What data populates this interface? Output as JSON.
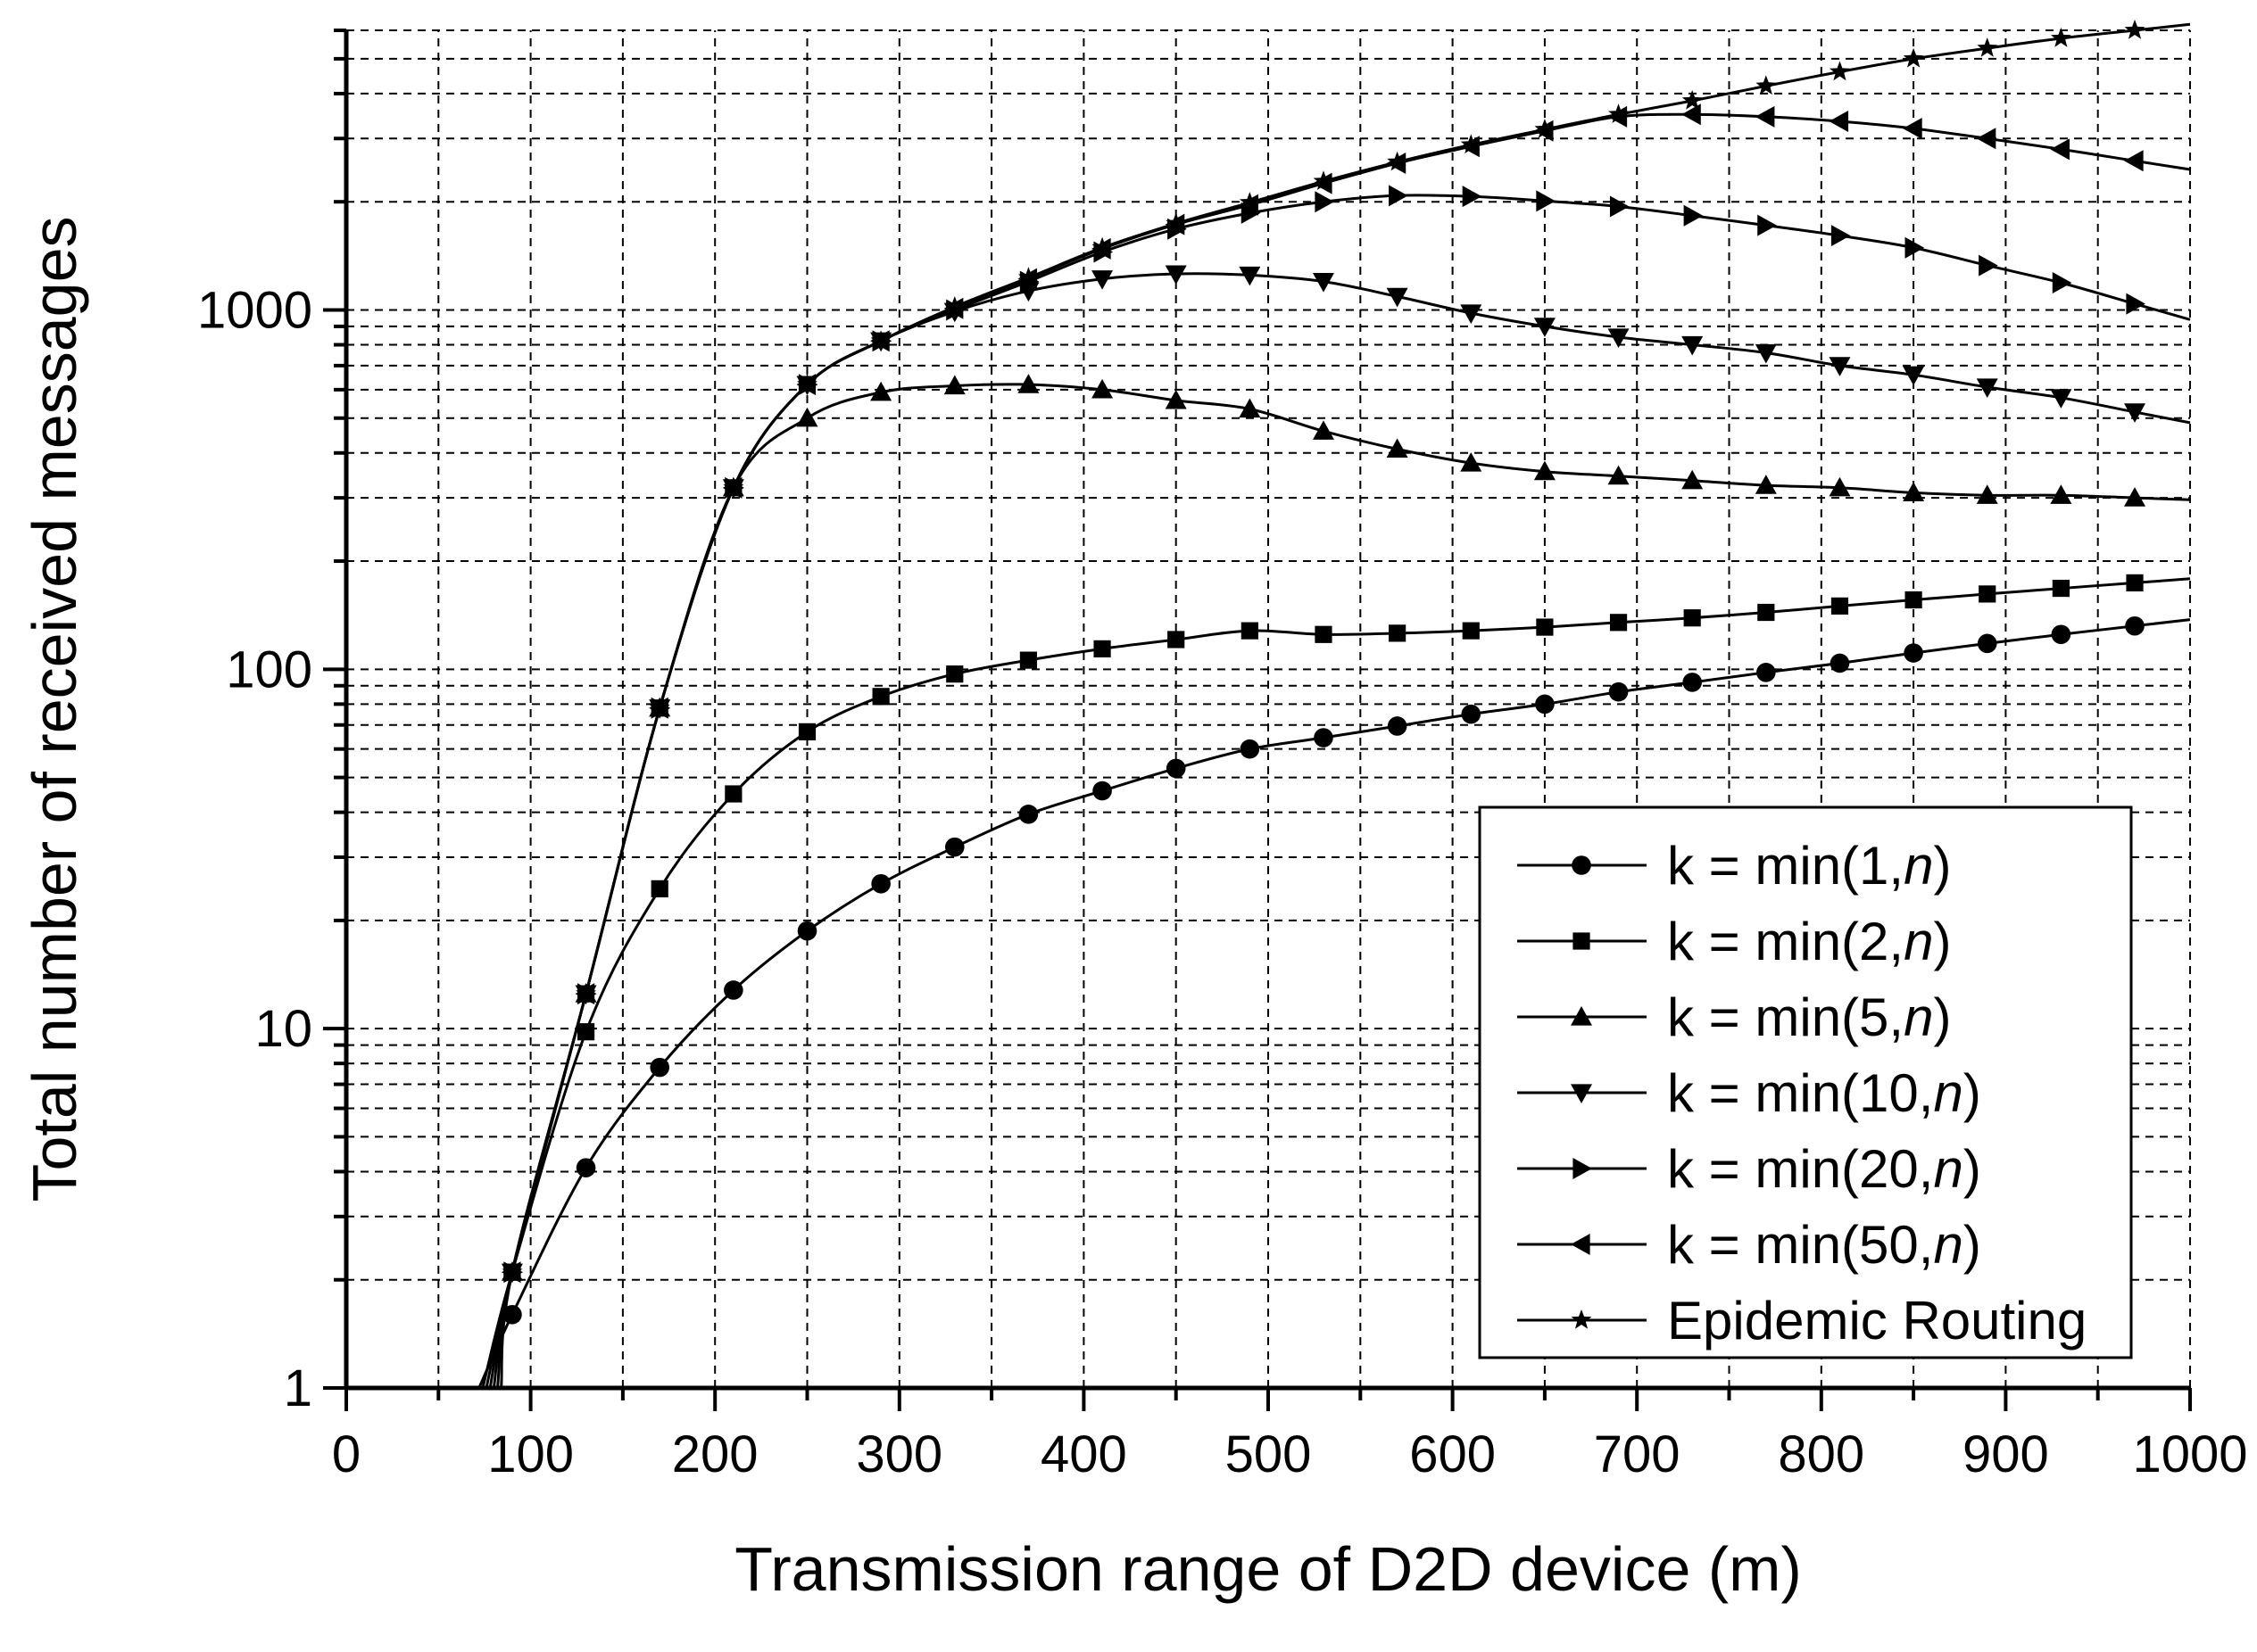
{
  "chart_data": {
    "type": "line",
    "title": "",
    "xlabel": "Transmission range of D2D device (m)",
    "ylabel": "Total number of received messages",
    "xlim": [
      0,
      1000
    ],
    "ylim": [
      1,
      6000
    ],
    "yscale": "log",
    "grid": true,
    "legend_position": "bottom-right",
    "x_ticks": [
      "0",
      "100",
      "200",
      "300",
      "400",
      "500",
      "600",
      "700",
      "800",
      "900",
      "1000"
    ],
    "y_ticks": [
      "1",
      "10",
      "100",
      "1000"
    ],
    "x": [
      90,
      130,
      170,
      210,
      250,
      290,
      330,
      370,
      410,
      450,
      490,
      530,
      570,
      610,
      650,
      690,
      730,
      770,
      810,
      850,
      890,
      930,
      970
    ],
    "series": [
      {
        "name": "k = min(1,",
        "name_italic": "n",
        "name_close": ")",
        "marker": "circle",
        "values": [
          1.6,
          4.1,
          7.8,
          12.8,
          18.7,
          25.3,
          32,
          39.5,
          45.9,
          53,
          60,
          64.5,
          69.5,
          75,
          80,
          86.5,
          92,
          98,
          104,
          111,
          118,
          125,
          132
        ]
      },
      {
        "name": "k = min(2,",
        "name_italic": "n",
        "name_close": ")",
        "marker": "square",
        "values": [
          2.1,
          9.8,
          24.5,
          45,
          67,
          84,
          97,
          106,
          114,
          121,
          128,
          125,
          126,
          128,
          131,
          135,
          139,
          144,
          150,
          156,
          162,
          168,
          174
        ]
      },
      {
        "name": "k = min(5,",
        "name_italic": "n",
        "name_close": ")",
        "marker": "triangle-up",
        "values": [
          2.1,
          12.5,
          78,
          320,
          500,
          590,
          615,
          620,
          600,
          560,
          530,
          460,
          410,
          375,
          355,
          345,
          335,
          325,
          320,
          310,
          305,
          305,
          300
        ]
      },
      {
        "name": "k = min(10,",
        "name_italic": "n",
        "name_close": ")",
        "marker": "triangle-down",
        "values": [
          2.1,
          12.5,
          78,
          320,
          620,
          820,
          990,
          1130,
          1220,
          1260,
          1250,
          1200,
          1090,
          980,
          900,
          840,
          800,
          760,
          700,
          660,
          610,
          570,
          520
        ]
      },
      {
        "name": "k = min(20,",
        "name_italic": "n",
        "name_close": ")",
        "marker": "triangle-right",
        "values": [
          2.1,
          12.5,
          78,
          320,
          620,
          820,
          1000,
          1200,
          1450,
          1680,
          1860,
          2000,
          2080,
          2070,
          2010,
          1940,
          1830,
          1720,
          1610,
          1490,
          1330,
          1190,
          1040
        ]
      },
      {
        "name": "k = min(50,",
        "name_italic": "n",
        "name_close": ")",
        "marker": "triangle-left",
        "values": [
          2.1,
          12.5,
          78,
          320,
          620,
          820,
          1010,
          1220,
          1480,
          1730,
          1960,
          2250,
          2560,
          2850,
          3150,
          3450,
          3500,
          3450,
          3350,
          3200,
          3000,
          2800,
          2600
        ]
      },
      {
        "name": "Epidemic Routing",
        "name_italic": "",
        "name_close": "",
        "marker": "star",
        "values": [
          2.1,
          12.5,
          78,
          320,
          620,
          820,
          1020,
          1230,
          1490,
          1740,
          1990,
          2280,
          2580,
          2880,
          3180,
          3500,
          3820,
          4200,
          4600,
          5000,
          5350,
          5700,
          6000
        ]
      }
    ]
  }
}
